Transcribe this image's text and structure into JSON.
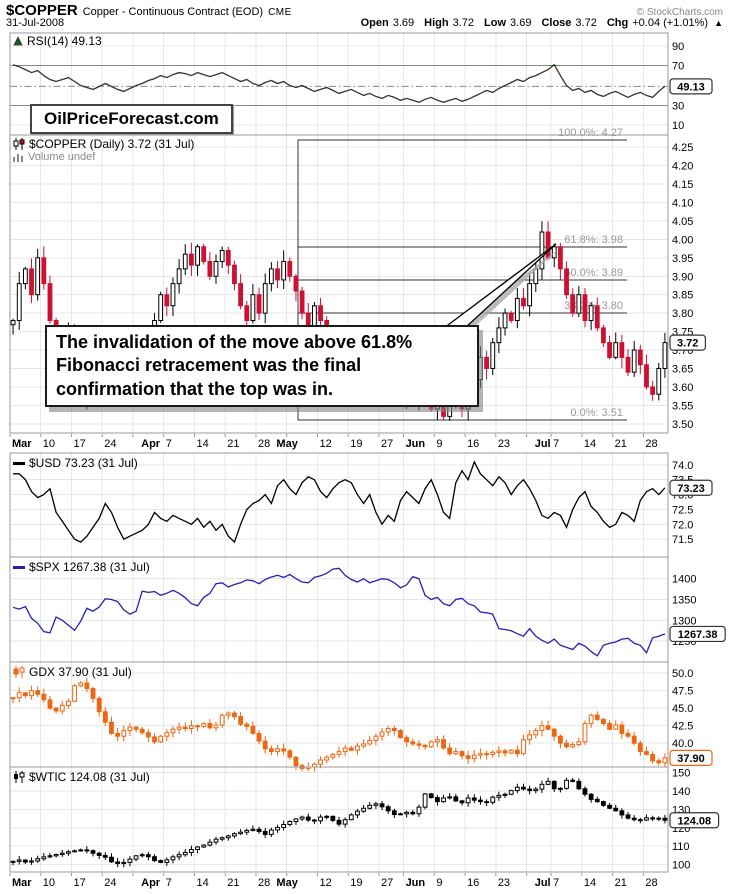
{
  "header": {
    "symbol": "$COPPER",
    "description": "Copper - Continuous Contract (EOD)",
    "exchange": "CME",
    "copyright": "© StockCharts.com",
    "date": "31-Jul-2008",
    "quote": [
      {
        "label": "Open",
        "value": "3.69"
      },
      {
        "label": "High",
        "value": "3.72"
      },
      {
        "label": "Low",
        "value": "3.69"
      },
      {
        "label": "Close",
        "value": "3.72"
      },
      {
        "label": "Chg",
        "value": "+0.04 (+1.01%)"
      }
    ],
    "arrow": "▲"
  },
  "watermark": "OilPriceForecast.com",
  "annotation": {
    "text": "The invalidation of the move above 61.8% Fibonacci retracement was the final confirmation that the top was in."
  },
  "axis": {
    "labels": [
      {
        "t": "Mar",
        "i": 0,
        "bold": true
      },
      {
        "t": "10",
        "i": 5
      },
      {
        "t": "17",
        "i": 10
      },
      {
        "t": "24",
        "i": 15
      },
      {
        "t": "Apr",
        "i": 21,
        "bold": true
      },
      {
        "t": "7",
        "i": 25
      },
      {
        "t": "14",
        "i": 30
      },
      {
        "t": "21",
        "i": 35
      },
      {
        "t": "28",
        "i": 40
      },
      {
        "t": "May",
        "i": 43,
        "bold": true
      },
      {
        "t": "12",
        "i": 50
      },
      {
        "t": "19",
        "i": 55
      },
      {
        "t": "27",
        "i": 60
      },
      {
        "t": "Jun",
        "i": 64,
        "bold": true
      },
      {
        "t": "9",
        "i": 69
      },
      {
        "t": "16",
        "i": 74
      },
      {
        "t": "23",
        "i": 79
      },
      {
        "t": "Jul",
        "i": 85,
        "bold": true
      },
      {
        "t": "7",
        "i": 88
      },
      {
        "t": "14",
        "i": 93
      },
      {
        "t": "21",
        "i": 98
      },
      {
        "t": "28",
        "i": 103
      }
    ],
    "weeks": [
      0,
      5,
      10,
      15,
      20,
      25,
      30,
      35,
      40,
      45,
      50,
      55,
      60,
      64,
      69,
      74,
      79,
      84,
      88,
      93,
      98,
      103
    ]
  },
  "colors": {
    "grid": "#e7e7e7",
    "border": "#9a9a9a",
    "fib_line": "#333333",
    "fib_label": "#999999",
    "rsi_band": "#888888",
    "overbought_fill": "#007700"
  },
  "chart_data": [
    {
      "id": "rsi",
      "type": "line",
      "title": "RSI(14) 49.13",
      "last": "49.13",
      "color": "#333333",
      "box_color": "#333333",
      "ylim": [
        0,
        103
      ],
      "overbought": 70,
      "oversold": 30,
      "legend_pos": "top",
      "ticks": [
        {
          "t": "90"
        },
        {
          "t": "70"
        },
        {
          "t": "30"
        },
        {
          "t": "10"
        }
      ],
      "values": [
        71,
        69,
        66,
        63,
        65,
        60,
        56,
        54,
        56,
        58,
        54,
        50,
        48,
        46,
        49,
        52,
        49,
        46,
        44,
        47,
        50,
        52,
        55,
        57,
        60,
        58,
        61,
        63,
        62,
        60,
        63,
        61,
        59,
        61,
        63,
        60,
        57,
        54,
        56,
        52,
        50,
        53,
        55,
        52,
        54,
        50,
        48,
        50,
        47,
        44,
        46,
        48,
        45,
        42,
        44,
        46,
        43,
        40,
        42,
        39,
        37,
        40,
        38,
        35,
        37,
        35,
        33,
        36,
        38,
        35,
        33,
        35,
        37,
        34,
        36,
        39,
        42,
        45,
        43,
        47,
        50,
        53,
        56,
        54,
        58,
        60,
        63,
        66,
        71,
        60,
        50,
        45,
        47,
        43,
        45,
        41,
        39,
        42,
        44,
        41,
        38,
        41,
        43,
        40,
        38,
        44,
        49.13
      ]
    },
    {
      "id": "copper",
      "type": "candlestick",
      "title": "$COPPER (Daily) 3.72 (31 Jul)",
      "subtitle": "Volume undef",
      "last": "3.72",
      "up_color": "#ffffff",
      "up_stroke": "#000000",
      "down_color": "#cc1133",
      "box_color": "#333333",
      "ylim": [
        3.475,
        4.283
      ],
      "wick_range": 0.032,
      "ticks": [
        {
          "t": "4.25"
        },
        {
          "t": "4.20"
        },
        {
          "t": "4.15"
        },
        {
          "t": "4.10"
        },
        {
          "t": "4.05"
        },
        {
          "t": "4.00"
        },
        {
          "t": "3.95"
        },
        {
          "t": "3.90"
        },
        {
          "t": "3.85"
        },
        {
          "t": "3.80"
        },
        {
          "t": "3.75"
        },
        {
          "t": "3.70"
        },
        {
          "t": "3.65"
        },
        {
          "t": "3.60"
        },
        {
          "t": "3.55"
        },
        {
          "t": "3.50"
        }
      ],
      "fibonacci": [
        {
          "label": "100.0%: 4.27",
          "v": 4.27
        },
        {
          "label": "61.8%: 3.98",
          "v": 3.98
        },
        {
          "label": "50.0%: 3.89",
          "v": 3.89
        },
        {
          "label": "38.2%: 3.80",
          "v": 3.8
        },
        {
          "label": "0.0%: 3.51",
          "v": 3.51
        }
      ],
      "closes": [
        3.78,
        3.88,
        3.92,
        3.85,
        3.95,
        3.88,
        3.78,
        3.7,
        3.64,
        3.76,
        3.62,
        3.56,
        3.6,
        3.68,
        3.64,
        3.58,
        3.62,
        3.7,
        3.66,
        3.72,
        3.68,
        3.66,
        3.72,
        3.78,
        3.85,
        3.82,
        3.88,
        3.92,
        3.96,
        3.93,
        3.98,
        3.94,
        3.9,
        3.94,
        3.97,
        3.93,
        3.88,
        3.82,
        3.78,
        3.85,
        3.8,
        3.88,
        3.92,
        3.89,
        3.94,
        3.9,
        3.86,
        3.8,
        3.76,
        3.82,
        3.78,
        3.72,
        3.68,
        3.73,
        3.7,
        3.65,
        3.7,
        3.74,
        3.68,
        3.63,
        3.6,
        3.63,
        3.58,
        3.57,
        3.6,
        3.56,
        3.6,
        3.58,
        3.54,
        3.56,
        3.52,
        3.55,
        3.58,
        3.54,
        3.58,
        3.62,
        3.68,
        3.65,
        3.72,
        3.76,
        3.8,
        3.78,
        3.84,
        3.82,
        3.88,
        3.92,
        4.02,
        3.95,
        3.98,
        3.92,
        3.85,
        3.8,
        3.85,
        3.78,
        3.82,
        3.76,
        3.72,
        3.68,
        3.72,
        3.68,
        3.64,
        3.7,
        3.66,
        3.6,
        3.58,
        3.65,
        3.72
      ]
    },
    {
      "id": "usd",
      "type": "line",
      "title": "$USD 73.23 (31 Jul)",
      "last": "73.23",
      "color": "#000000",
      "box_color": "#333333",
      "ylim": [
        70.9,
        74.4
      ],
      "ticks": [
        {
          "t": "74.0"
        },
        {
          "t": "73.5"
        },
        {
          "t": "73.0"
        },
        {
          "t": "72.5"
        },
        {
          "t": "72.0"
        },
        {
          "t": "71.5"
        }
      ],
      "values": [
        73.7,
        73.7,
        73.5,
        73.1,
        72.9,
        73.0,
        73.2,
        72.4,
        72.1,
        71.8,
        71.5,
        71.4,
        71.6,
        71.9,
        72.2,
        72.7,
        72.4,
        71.9,
        71.5,
        71.6,
        71.7,
        71.8,
        72.0,
        72.4,
        72.2,
        72.1,
        72.3,
        72.2,
        72.1,
        72.0,
        72.2,
        71.9,
        72.1,
        71.8,
        72.0,
        71.6,
        71.4,
        72.0,
        72.5,
        72.7,
        72.8,
        73.0,
        72.7,
        73.3,
        73.5,
        73.2,
        73.0,
        73.4,
        73.6,
        73.5,
        73.1,
        72.9,
        73.2,
        73.4,
        73.5,
        73.4,
        73.0,
        72.7,
        73.0,
        72.4,
        72.0,
        72.3,
        72.1,
        72.8,
        73.1,
        72.9,
        72.7,
        73.2,
        73.5,
        73.0,
        72.4,
        72.2,
        73.4,
        73.8,
        73.5,
        74.1,
        73.7,
        73.5,
        73.3,
        73.6,
        73.4,
        73.0,
        73.3,
        73.5,
        73.2,
        72.8,
        72.3,
        72.2,
        72.4,
        72.3,
        71.9,
        72.5,
        72.9,
        73.1,
        72.6,
        72.4,
        72.1,
        71.9,
        72.0,
        72.4,
        72.3,
        72.1,
        72.8,
        73.1,
        73.2,
        73.0,
        73.23
      ]
    },
    {
      "id": "spx",
      "type": "line",
      "title": "$SPX 1267.38 (31 Jul)",
      "last": "1267.38",
      "color": "#2222b2",
      "box_color": "#333333",
      "ylim": [
        1200,
        1452
      ],
      "ticks": [
        {
          "t": "1400"
        },
        {
          "t": "1350"
        },
        {
          "t": "1300"
        },
        {
          "t": "1250"
        }
      ],
      "values": [
        1331,
        1327,
        1333,
        1305,
        1293,
        1273,
        1270,
        1308,
        1300,
        1288,
        1276,
        1298,
        1329,
        1322,
        1332,
        1352,
        1350,
        1345,
        1325,
        1315,
        1322,
        1370,
        1367,
        1369,
        1360,
        1365,
        1372,
        1365,
        1354,
        1340,
        1335,
        1355,
        1365,
        1388,
        1390,
        1380,
        1386,
        1390,
        1397,
        1395,
        1388,
        1398,
        1404,
        1408,
        1403,
        1410,
        1400,
        1392,
        1390,
        1403,
        1407,
        1413,
        1423,
        1425,
        1408,
        1398,
        1392,
        1400,
        1390,
        1395,
        1400,
        1398,
        1390,
        1378,
        1385,
        1405,
        1400,
        1360,
        1350,
        1355,
        1340,
        1335,
        1350,
        1353,
        1340,
        1335,
        1320,
        1318,
        1315,
        1280,
        1278,
        1275,
        1268,
        1262,
        1280,
        1262,
        1252,
        1245,
        1255,
        1240,
        1235,
        1230,
        1245,
        1238,
        1225,
        1215,
        1240,
        1245,
        1248,
        1255,
        1257,
        1245,
        1240,
        1222,
        1258,
        1262,
        1267.38
      ]
    },
    {
      "id": "gdx",
      "type": "candlestick",
      "title": "GDX 37.90 (31 Jul)",
      "last": "37.90",
      "up_color": "#ffffff",
      "up_stroke": "#ee6611",
      "down_color": "#ee6611",
      "box_color": "#ee6611",
      "ylim": [
        36.6,
        51.6
      ],
      "wick_range": 0.8,
      "ticks": [
        {
          "t": "50.0"
        },
        {
          "t": "47.5"
        },
        {
          "t": "45.0"
        },
        {
          "t": "42.5"
        },
        {
          "t": "40.0"
        }
      ],
      "closes": [
        46.5,
        47.2,
        46.8,
        47.5,
        47.0,
        46.2,
        45.0,
        44.6,
        45.4,
        46.0,
        48.2,
        48.6,
        47.8,
        46.4,
        44.5,
        43.0,
        41.4,
        41.0,
        41.8,
        42.3,
        42.0,
        41.5,
        40.9,
        40.2,
        41.0,
        41.5,
        42.0,
        42.3,
        42.1,
        42.5,
        42.4,
        42.8,
        42.2,
        42.6,
        44.0,
        44.3,
        43.8,
        42.7,
        42.4,
        41.4,
        40.3,
        39.2,
        38.8,
        39.2,
        38.9,
        38.0,
        36.8,
        36.4,
        36.6,
        37.0,
        37.6,
        38.0,
        38.4,
        38.8,
        39.3,
        39.0,
        39.6,
        39.9,
        40.4,
        41.0,
        41.6,
        42.1,
        41.8,
        40.8,
        40.2,
        39.9,
        39.7,
        39.5,
        40.2,
        40.5,
        39.3,
        38.5,
        38.8,
        38.2,
        37.8,
        38.3,
        38.5,
        38.4,
        38.7,
        38.9,
        38.6,
        39.0,
        38.5,
        40.5,
        41.2,
        41.8,
        42.5,
        42.0,
        41.0,
        40.0,
        39.5,
        39.8,
        40.2,
        42.8,
        44.0,
        43.4,
        42.8,
        42.0,
        42.6,
        41.4,
        41.0,
        40.0,
        38.8,
        38.4,
        37.5,
        37.2,
        37.9
      ]
    },
    {
      "id": "wtic",
      "type": "candlestick",
      "title": "$WTIC 124.08 (31 Jul)",
      "last": "124.08",
      "up_color": "#ffffff",
      "up_stroke": "#000000",
      "down_color": "#000000",
      "box_color": "#333333",
      "ylim": [
        96,
        153
      ],
      "wick_range": 2.2,
      "ticks": [
        {
          "t": "150"
        },
        {
          "t": "140"
        },
        {
          "t": "130"
        },
        {
          "t": "120"
        },
        {
          "t": "110"
        },
        {
          "t": "100"
        }
      ],
      "closes": [
        101.8,
        102.5,
        101.4,
        102.0,
        103.2,
        104.2,
        104.8,
        105.5,
        106.2,
        107.0,
        107.5,
        108.0,
        107.6,
        106.2,
        105.0,
        104.0,
        101.5,
        100.6,
        101.2,
        103.0,
        104.8,
        105.4,
        104.3,
        102.2,
        101.2,
        102.6,
        104.2,
        105.4,
        106.6,
        108.2,
        109.6,
        110.6,
        112.2,
        113.8,
        114.6,
        115.6,
        116.8,
        117.6,
        118.6,
        119.2,
        118.0,
        116.4,
        118.8,
        120.2,
        121.8,
        123.4,
        124.8,
        125.8,
        124.2,
        123.8,
        125.8,
        126.2,
        124.0,
        122.0,
        124.4,
        127.0,
        129.0,
        130.6,
        132.2,
        133.0,
        131.4,
        129.2,
        127.2,
        127.6,
        128.4,
        127.6,
        131.2,
        138.4,
        136.4,
        134.2,
        136.2,
        136.8,
        134.6,
        133.6,
        136.2,
        135.0,
        134.2,
        133.8,
        136.6,
        137.6,
        138.2,
        140.2,
        142.0,
        141.0,
        140.2,
        141.0,
        143.6,
        145.2,
        141.2,
        141.4,
        145.8,
        145.2,
        141.2,
        138.2,
        135.4,
        134.2,
        132.2,
        130.6,
        129.2,
        127.0,
        125.2,
        124.4,
        124.2,
        125.4,
        124.8,
        125.2,
        124.08
      ]
    }
  ]
}
